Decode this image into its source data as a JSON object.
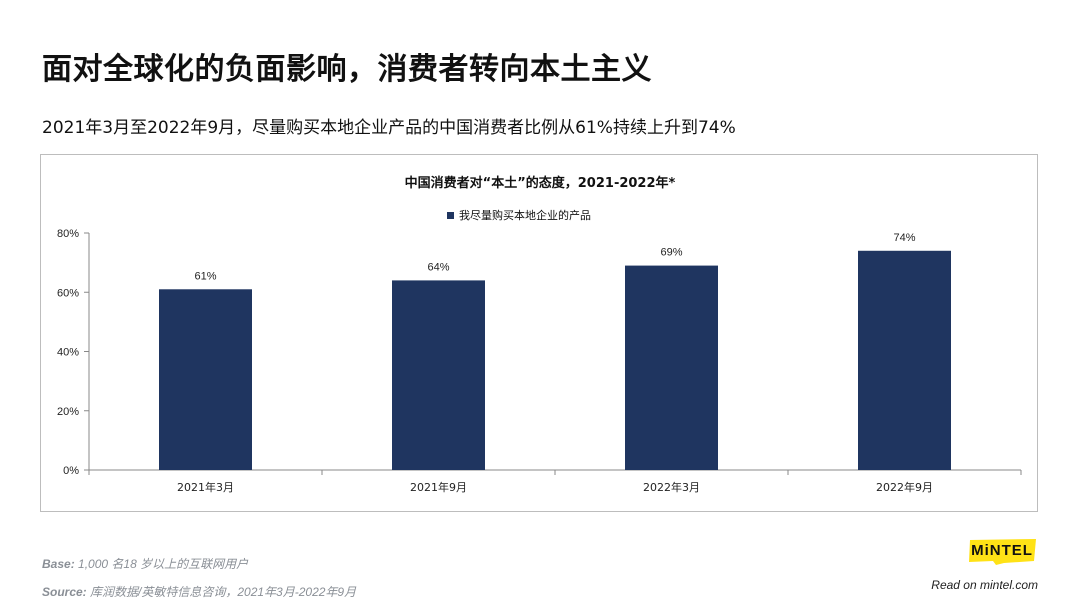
{
  "header": {
    "title": "面对全球化的负面影响，消费者转向本土主义",
    "subtitle": "2021年3月至2022年9月，尽量购买本地企业产品的中国消费者比例从61%持续上升到74%"
  },
  "chart_data": {
    "type": "bar",
    "title": "中国消费者对“本土”的态度，2021-2022年*",
    "categories": [
      "2021年3月",
      "2021年9月",
      "2022年3月",
      "2022年9月"
    ],
    "series": [
      {
        "name": "我尽量购买本地企业的产品",
        "values": [
          61,
          64,
          69,
          74
        ],
        "color": "#1f3560"
      }
    ],
    "data_labels": [
      "61%",
      "64%",
      "69%",
      "74%"
    ],
    "ylim": [
      0,
      80
    ],
    "yticks": [
      0,
      20,
      40,
      60,
      80
    ],
    "ytick_labels": [
      "0%",
      "20%",
      "40%",
      "60%",
      "80%"
    ],
    "legend_position": "top",
    "grid": false
  },
  "footer": {
    "base_label": "Base:",
    "base_text": "1,000 名18 岁以上的互联网用户",
    "source_label": "Source:",
    "source_text": "库润数据/英敏特信息咨询，2021年3月-2022年9月",
    "logo_text": "MiNTEL",
    "read_on": "Read on mintel.com",
    "logo_color": "#ffe216"
  }
}
